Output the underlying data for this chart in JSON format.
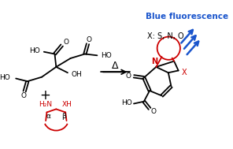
{
  "bg_color": "#ffffff",
  "black": "#000000",
  "red": "#cc0000",
  "blue": "#1a55cc",
  "title": "Blue fluorescence",
  "xsno": "X: S, N, O",
  "delta": "Δ",
  "figsize": [
    2.96,
    1.89
  ],
  "dpi": 100
}
